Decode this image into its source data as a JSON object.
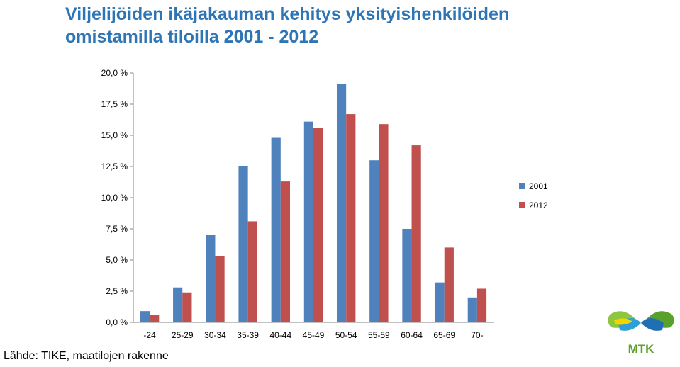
{
  "title_line1": "Viljelijöiden ikäjakauman kehitys yksityishenkilöiden",
  "title_line2": "omistamilla tiloilla 2001 - 2012",
  "source": "Lähde: TIKE, maatilojen rakenne",
  "logo_text": "MTK",
  "colors": {
    "title": "#2e75b6",
    "series2001": "#4f81bd",
    "series2012": "#c0504d",
    "axis": "#868686",
    "logo_green": "#5aa02c"
  },
  "chart_data": {
    "type": "bar",
    "categories": [
      "-24",
      "25-29",
      "30-34",
      "35-39",
      "40-44",
      "45-49",
      "50-54",
      "55-59",
      "60-64",
      "65-69",
      "70-"
    ],
    "series": [
      {
        "name": "2001",
        "values": [
          0.9,
          2.8,
          7.0,
          12.5,
          14.8,
          16.1,
          19.1,
          13.0,
          7.5,
          3.2,
          2.0
        ]
      },
      {
        "name": "2012",
        "values": [
          0.6,
          2.4,
          5.3,
          8.1,
          11.3,
          15.6,
          16.7,
          15.9,
          14.2,
          6.0,
          2.7
        ]
      }
    ],
    "yticks": [
      "0,0 %",
      "2,5 %",
      "5,0 %",
      "7,5 %",
      "10,0 %",
      "12,5 %",
      "15,0 %",
      "17,5 %",
      "20,0 %"
    ],
    "ylim": [
      0,
      20
    ],
    "legend_position": "right",
    "grid": false
  }
}
